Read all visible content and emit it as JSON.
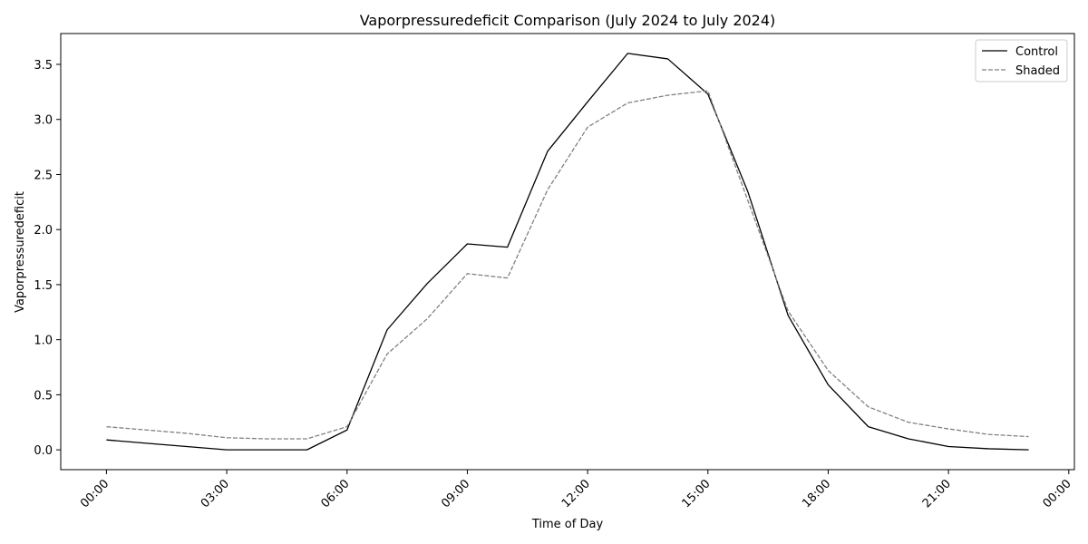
{
  "chart_data": {
    "type": "line",
    "title": "Vaporpressuredeficit Comparison (July 2024 to July 2024)",
    "xlabel": "Time of Day",
    "ylabel": "Vaporpressuredeficit",
    "x_hours": [
      0,
      1,
      2,
      3,
      4,
      5,
      6,
      7,
      8,
      9,
      10,
      11,
      12,
      13,
      14,
      15,
      16,
      17,
      18,
      19,
      20,
      21,
      22,
      23
    ],
    "xlim_hours": [
      -1.14,
      24.14
    ],
    "ylim": [
      -0.18,
      3.78
    ],
    "x_ticks_hours": [
      0,
      3,
      6,
      9,
      12,
      15,
      18,
      21,
      24
    ],
    "x_tick_labels": [
      "00:00",
      "03:00",
      "06:00",
      "09:00",
      "12:00",
      "15:00",
      "18:00",
      "21:00",
      "00:00"
    ],
    "y_ticks": [
      0.0,
      0.5,
      1.0,
      1.5,
      2.0,
      2.5,
      3.0,
      3.5
    ],
    "y_tick_labels": [
      "0.0",
      "0.5",
      "1.0",
      "1.5",
      "2.0",
      "2.5",
      "3.0",
      "3.5"
    ],
    "grid": false,
    "legend_position": "top-right",
    "series": [
      {
        "name": "Control",
        "color": "#000000",
        "style": "solid",
        "values": [
          0.09,
          0.06,
          0.03,
          0.0,
          0.0,
          0.0,
          0.18,
          1.09,
          1.51,
          1.87,
          1.84,
          2.71,
          3.16,
          3.6,
          3.55,
          3.23,
          2.34,
          1.22,
          0.59,
          0.21,
          0.1,
          0.03,
          0.01,
          0.0
        ]
      },
      {
        "name": "Shaded",
        "color": "#808080",
        "style": "dashed",
        "values": [
          0.21,
          0.18,
          0.15,
          0.11,
          0.1,
          0.1,
          0.21,
          0.87,
          1.19,
          1.6,
          1.56,
          2.36,
          2.93,
          3.15,
          3.22,
          3.26,
          2.26,
          1.26,
          0.72,
          0.39,
          0.25,
          0.19,
          0.14,
          0.12
        ]
      }
    ]
  }
}
